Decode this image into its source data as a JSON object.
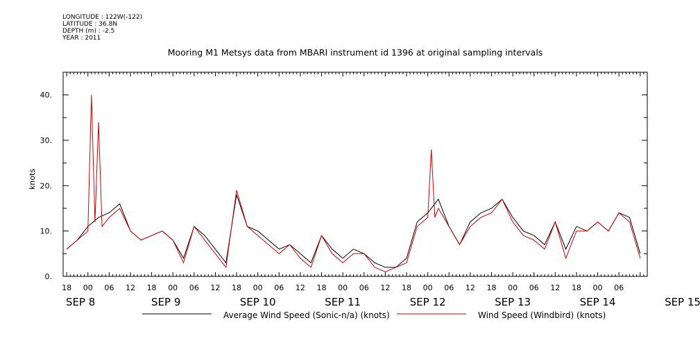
{
  "header": {
    "lines": [
      "LONGITUDE : 122W(-122)",
      "LATITUDE : 36.8N",
      "DEPTH (m) : -2.5",
      "YEAR : 2011"
    ]
  },
  "chart_data": {
    "type": "line",
    "title": "Mooring M1 Metsys data from MBARI instrument id 1396 at original sampling intervals",
    "xlabel": "",
    "ylabel": "knots",
    "ylim": [
      0,
      45
    ],
    "yticks": [
      "0.",
      "10.",
      "20.",
      "30.",
      "40."
    ],
    "ytick_values": [
      0,
      10,
      20,
      30,
      40
    ],
    "x_hour_ticks": [
      "18",
      "00",
      "06",
      "12",
      "18",
      "00",
      "06",
      "12",
      "18",
      "00",
      "06",
      "12",
      "18",
      "00",
      "06",
      "12",
      "18",
      "00",
      "06",
      "12",
      "18",
      "00",
      "06",
      "12",
      "18",
      "00",
      "06"
    ],
    "x_date_labels": [
      "SEP 8",
      "SEP 9",
      "SEP 10",
      "SEP 11",
      "SEP 12",
      "SEP 13",
      "SEP 14",
      "SEP 15"
    ],
    "xlim_hours": [
      -7,
      158
    ],
    "grid": false,
    "legend_position": "bottom",
    "series": [
      {
        "name": "Average Wind Speed (Sonic-n/a) (knots)",
        "color": "#000000",
        "x_hours": [
          -6,
          -3,
          0,
          3,
          6,
          9,
          12,
          15,
          18,
          21,
          24,
          27,
          30,
          33,
          36,
          39,
          42,
          45,
          48,
          51,
          54,
          57,
          60,
          63,
          66,
          69,
          72,
          75,
          78,
          81,
          84,
          87,
          90,
          93,
          96,
          99,
          102,
          105,
          108,
          111,
          114,
          117,
          120,
          123,
          126,
          129,
          132,
          135,
          138,
          141,
          144,
          147,
          150,
          153,
          156
        ],
        "values": [
          6,
          8,
          11,
          13,
          14,
          16,
          10,
          8,
          9,
          10,
          8,
          4,
          11,
          9,
          6,
          3,
          18,
          11,
          10,
          8,
          6,
          7,
          5,
          3,
          9,
          6,
          4,
          6,
          5,
          3,
          2,
          2,
          4,
          12,
          14,
          17,
          11,
          7,
          12,
          14,
          15,
          17,
          13,
          10,
          9,
          7,
          12,
          6,
          11,
          10,
          12,
          10,
          14,
          13,
          5
        ]
      },
      {
        "name": "Wind Speed (Windbird) (knots)",
        "color": "#cc0000",
        "x_hours": [
          -6,
          -3,
          0,
          1,
          2,
          3,
          4,
          6,
          9,
          12,
          15,
          18,
          21,
          24,
          27,
          30,
          33,
          36,
          39,
          42,
          45,
          48,
          51,
          54,
          57,
          60,
          63,
          66,
          69,
          72,
          75,
          78,
          81,
          84,
          87,
          90,
          93,
          96,
          97,
          98,
          99,
          102,
          105,
          108,
          111,
          114,
          117,
          120,
          123,
          126,
          129,
          132,
          135,
          138,
          141,
          144,
          147,
          150,
          153,
          156
        ],
        "values": [
          6,
          8,
          10,
          40,
          12,
          34,
          11,
          13,
          15,
          10,
          8,
          9,
          10,
          8,
          3,
          11,
          8,
          5,
          2,
          19,
          11,
          9,
          7,
          5,
          7,
          4,
          2,
          9,
          5,
          3,
          5,
          5,
          2,
          1,
          2,
          3,
          11,
          13,
          28,
          13,
          15,
          11,
          7,
          11,
          13,
          14,
          17,
          12,
          9,
          8,
          6,
          12,
          4,
          10,
          10,
          12,
          10,
          14,
          12,
          4
        ]
      }
    ]
  }
}
